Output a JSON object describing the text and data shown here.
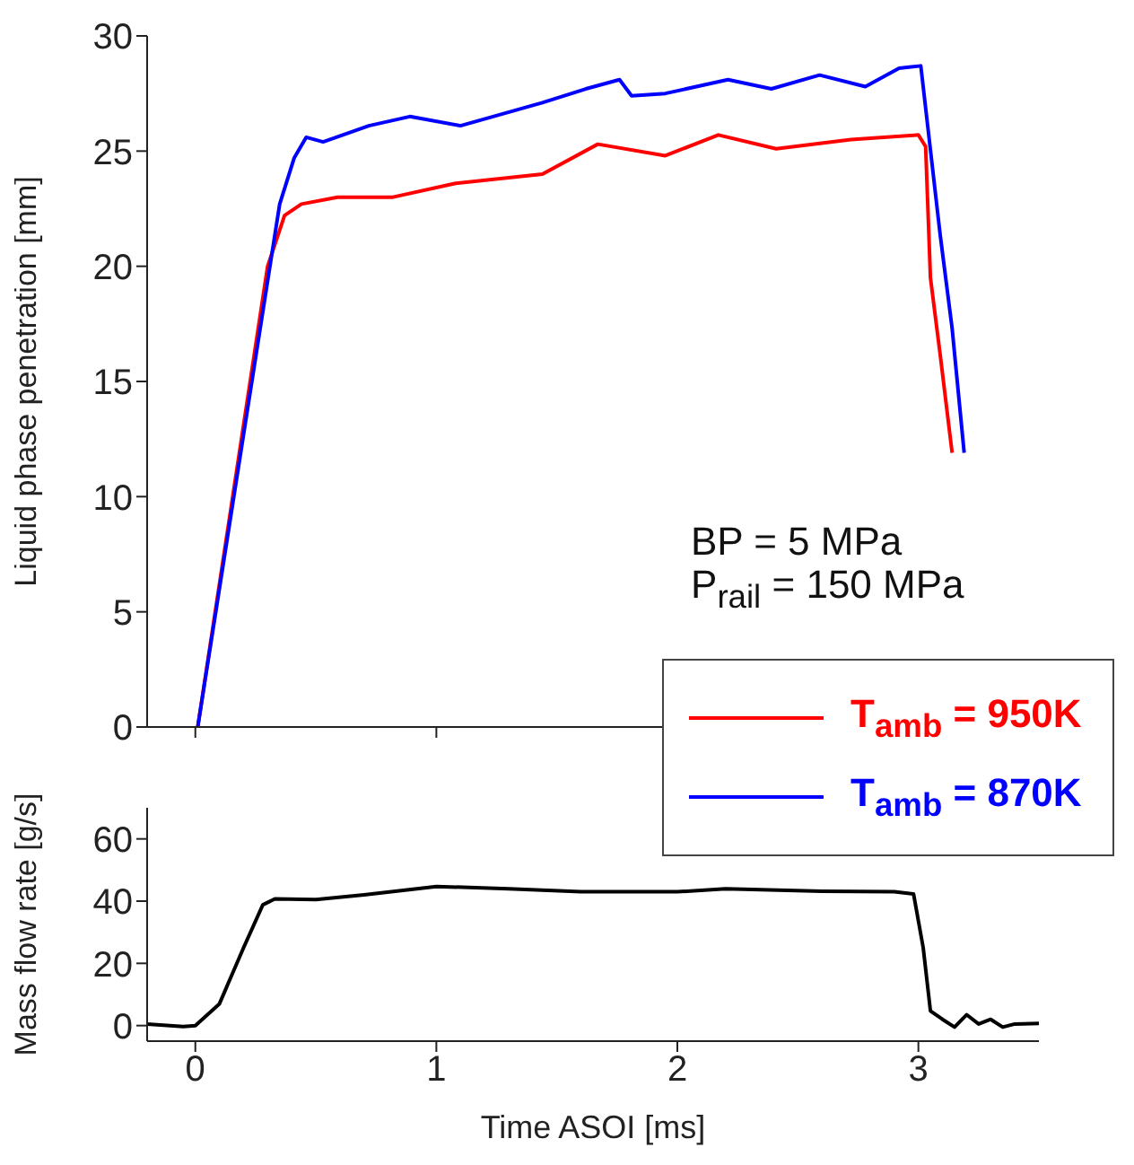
{
  "chart_data": [
    {
      "type": "line",
      "ylabel": "Liquid phase penetration [mm]",
      "xlim": [
        -0.2,
        3.5
      ],
      "xticks": [
        0,
        1,
        2,
        3
      ],
      "ylim": [
        0,
        30
      ],
      "yticks": [
        0,
        5,
        10,
        15,
        20,
        25,
        30
      ],
      "tick_labels": "y",
      "legend": "bottom right",
      "marker": "none",
      "annotations": [
        "BP = 5 MPa",
        "P$_{rail}$ = 150 MPa"
      ],
      "series": [
        {
          "name": "T$_{amb}$ = 950K",
          "color": "#ff0000",
          "x": [
            0.01,
            0.3,
            0.37,
            0.44,
            0.59,
            0.82,
            1.08,
            1.44,
            1.67,
            1.95,
            2.17,
            2.41,
            2.72,
            3.0,
            3.03,
            3.05,
            3.09,
            3.14
          ],
          "values": [
            0,
            20.0,
            22.2,
            22.7,
            23.0,
            23.0,
            23.6,
            24.0,
            25.3,
            24.8,
            25.7,
            25.1,
            25.5,
            25.7,
            25.2,
            19.5,
            16.2,
            11.9
          ]
        },
        {
          "name": "T$_{amb}$ = 870K",
          "color": "#0000ff",
          "x": [
            0.01,
            0.35,
            0.41,
            0.46,
            0.53,
            0.72,
            0.89,
            1.1,
            1.44,
            1.62,
            1.76,
            1.81,
            1.95,
            2.21,
            2.39,
            2.59,
            2.78,
            2.92,
            3.01,
            3.09,
            3.14,
            3.19
          ],
          "values": [
            0,
            22.7,
            24.7,
            25.6,
            25.4,
            26.1,
            26.5,
            26.1,
            27.1,
            27.7,
            28.1,
            27.4,
            27.5,
            28.1,
            27.7,
            28.3,
            27.8,
            28.6,
            28.7,
            21.4,
            17.3,
            11.9
          ]
        }
      ]
    },
    {
      "type": "line",
      "xlabel": "Time ASOI [ms]",
      "ylabel": "Mass flow rate [g/s]",
      "xlim": [
        -0.2,
        3.5
      ],
      "xticks": [
        0,
        1,
        2,
        3
      ],
      "ylim": [
        -5,
        70
      ],
      "yticks": [
        0,
        20,
        40,
        60
      ],
      "marker": "none",
      "series": [
        {
          "color": "#000000",
          "x": [
            -0.2,
            -0.05,
            0,
            0.1,
            0.2,
            0.28,
            0.33,
            0.5,
            0.7,
            1.0,
            1.3,
            1.6,
            2.0,
            2.2,
            2.6,
            2.9,
            2.98,
            3.02,
            3.05,
            3.1,
            3.15,
            3.2,
            3.25,
            3.3,
            3.35,
            3.4,
            3.5
          ],
          "values": [
            0.5,
            -0.3,
            0,
            7,
            25,
            38.8,
            40.7,
            40.5,
            42,
            44.7,
            44,
            43,
            43,
            44,
            43.2,
            43,
            42.3,
            25,
            4.7,
            2,
            -0.5,
            3.5,
            0.5,
            2,
            -0.5,
            0.5,
            0.7
          ]
        }
      ]
    }
  ]
}
